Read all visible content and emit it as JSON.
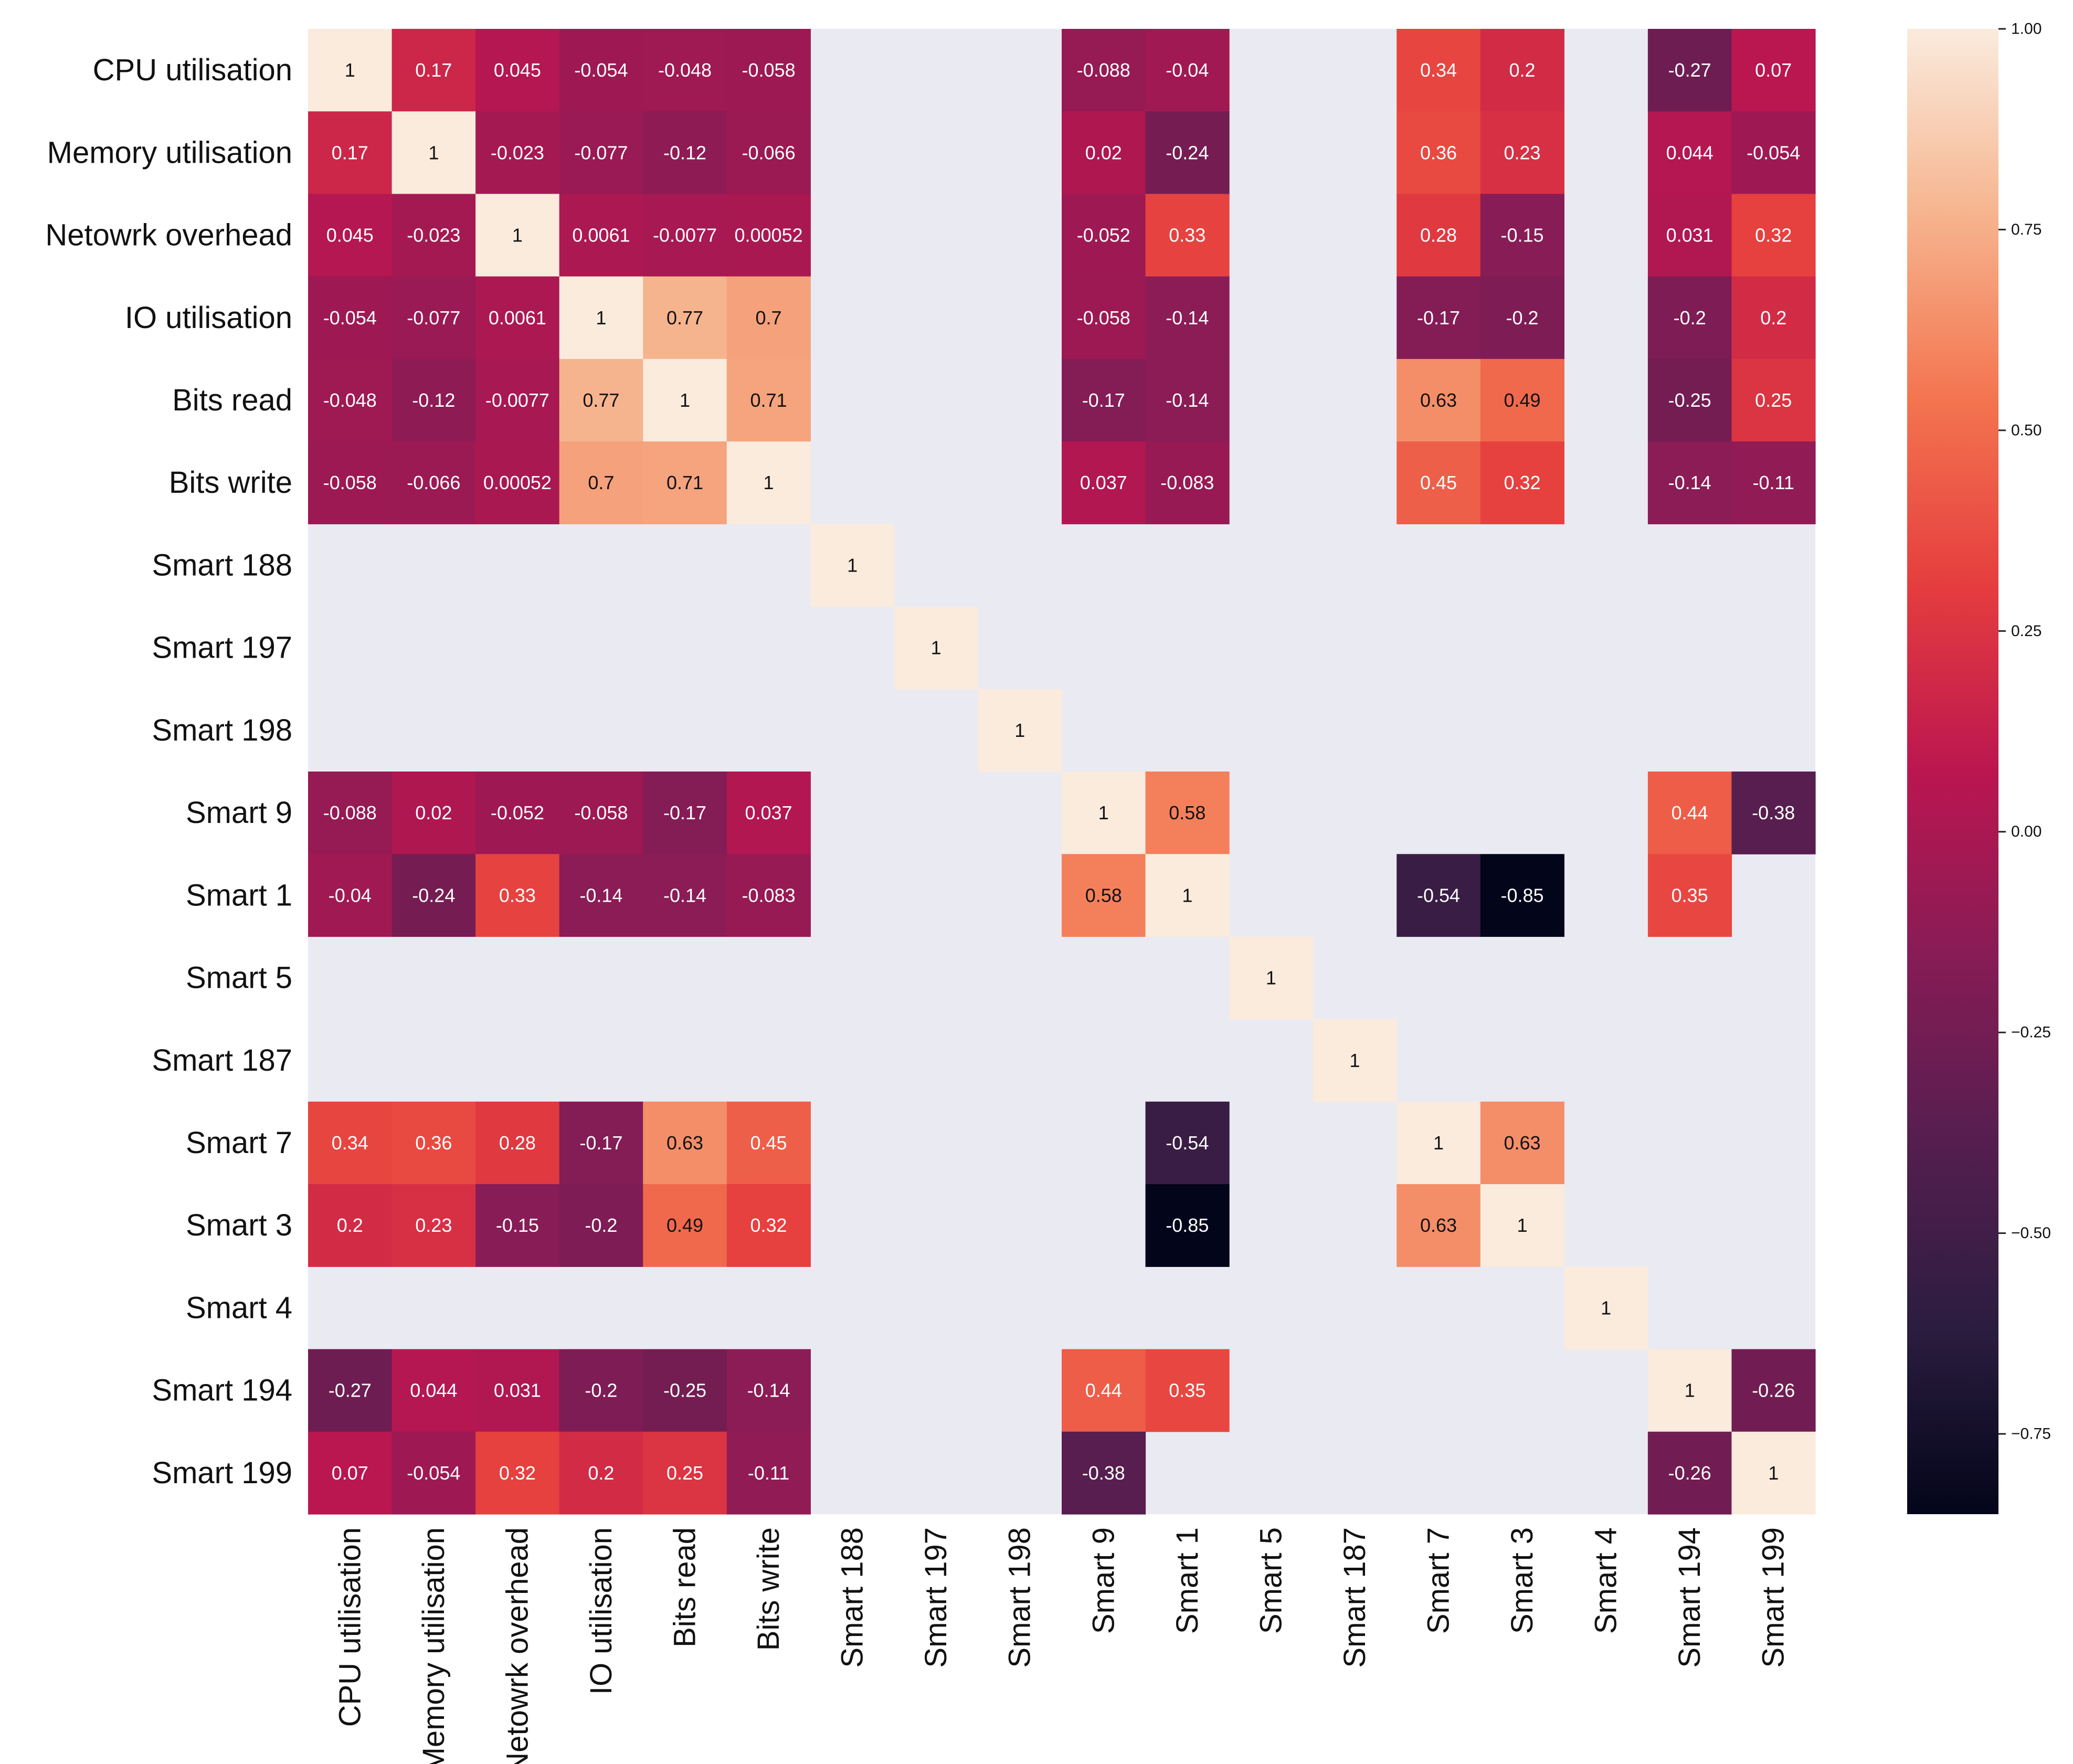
{
  "chart_data": {
    "type": "heatmap",
    "title": "",
    "xlabel": "",
    "ylabel": "",
    "labels": [
      "CPU utilisation",
      "Memory utilisation",
      "Netowrk overhead",
      "IO utilisation",
      "Bits read",
      "Bits write",
      "Smart 188",
      "Smart 197",
      "Smart 198",
      "Smart 9",
      "Smart 1",
      "Smart 5",
      "Smart 187",
      "Smart 7",
      "Smart 3",
      "Smart 4",
      "Smart 194",
      "Smart 199"
    ],
    "matrix": [
      [
        1,
        0.17,
        0.045,
        -0.054,
        -0.048,
        -0.058,
        null,
        null,
        null,
        -0.088,
        -0.04,
        null,
        null,
        0.34,
        0.2,
        null,
        -0.27,
        0.07
      ],
      [
        0.17,
        1,
        -0.023,
        -0.077,
        -0.12,
        -0.066,
        null,
        null,
        null,
        0.02,
        -0.24,
        null,
        null,
        0.36,
        0.23,
        null,
        0.044,
        -0.054
      ],
      [
        0.045,
        -0.023,
        1,
        0.0061,
        -0.0077,
        0.00052,
        null,
        null,
        null,
        -0.052,
        0.33,
        null,
        null,
        0.28,
        -0.15,
        null,
        0.031,
        0.32
      ],
      [
        -0.054,
        -0.077,
        0.0061,
        1,
        0.77,
        0.7,
        null,
        null,
        null,
        -0.058,
        -0.14,
        null,
        null,
        -0.17,
        -0.2,
        null,
        -0.2,
        0.2
      ],
      [
        -0.048,
        -0.12,
        -0.0077,
        0.77,
        1,
        0.71,
        null,
        null,
        null,
        -0.17,
        -0.14,
        null,
        null,
        0.63,
        0.49,
        null,
        -0.25,
        0.25
      ],
      [
        -0.058,
        -0.066,
        0.00052,
        0.7,
        0.71,
        1,
        null,
        null,
        null,
        0.037,
        -0.083,
        null,
        null,
        0.45,
        0.32,
        null,
        -0.14,
        -0.11
      ],
      [
        null,
        null,
        null,
        null,
        null,
        null,
        1,
        null,
        null,
        null,
        null,
        null,
        null,
        null,
        null,
        null,
        null,
        null
      ],
      [
        null,
        null,
        null,
        null,
        null,
        null,
        null,
        1,
        null,
        null,
        null,
        null,
        null,
        null,
        null,
        null,
        null,
        null
      ],
      [
        null,
        null,
        null,
        null,
        null,
        null,
        null,
        null,
        1,
        null,
        null,
        null,
        null,
        null,
        null,
        null,
        null,
        null
      ],
      [
        -0.088,
        0.02,
        -0.052,
        -0.058,
        -0.17,
        0.037,
        null,
        null,
        null,
        1,
        0.58,
        null,
        null,
        null,
        null,
        null,
        0.44,
        -0.38
      ],
      [
        -0.04,
        -0.24,
        0.33,
        -0.14,
        -0.14,
        -0.083,
        null,
        null,
        null,
        0.58,
        1,
        null,
        null,
        -0.54,
        -0.85,
        null,
        0.35,
        null
      ],
      [
        null,
        null,
        null,
        null,
        null,
        null,
        null,
        null,
        null,
        null,
        null,
        1,
        null,
        null,
        null,
        null,
        null,
        null
      ],
      [
        null,
        null,
        null,
        null,
        null,
        null,
        null,
        null,
        null,
        null,
        null,
        null,
        1,
        null,
        null,
        null,
        null,
        null
      ],
      [
        0.34,
        0.36,
        0.28,
        -0.17,
        0.63,
        0.45,
        null,
        null,
        null,
        null,
        -0.54,
        null,
        null,
        1,
        0.63,
        null,
        null,
        null
      ],
      [
        0.2,
        0.23,
        -0.15,
        -0.2,
        0.49,
        0.32,
        null,
        null,
        null,
        null,
        -0.85,
        null,
        null,
        0.63,
        1,
        null,
        null,
        null
      ],
      [
        null,
        null,
        null,
        null,
        null,
        null,
        null,
        null,
        null,
        null,
        null,
        null,
        null,
        null,
        null,
        1,
        null,
        null
      ],
      [
        -0.27,
        0.044,
        0.031,
        -0.2,
        -0.25,
        -0.14,
        null,
        null,
        null,
        0.44,
        0.35,
        null,
        null,
        null,
        null,
        null,
        1,
        -0.26
      ],
      [
        0.07,
        -0.054,
        0.32,
        0.2,
        0.25,
        -0.11,
        null,
        null,
        null,
        -0.38,
        null,
        null,
        null,
        null,
        null,
        null,
        -0.26,
        1
      ]
    ],
    "display_text": [
      [
        "1",
        "0.17",
        "0.045",
        "-0.054",
        "-0.048",
        "-0.058",
        "",
        "",
        "",
        "-0.088",
        "-0.04",
        "",
        "",
        "0.34",
        "0.2",
        "",
        "-0.27",
        "0.07"
      ],
      [
        "0.17",
        "1",
        "-0.023",
        "-0.077",
        "-0.12",
        "-0.066",
        "",
        "",
        "",
        "0.02",
        "-0.24",
        "",
        "",
        "0.36",
        "0.23",
        "",
        "0.044",
        "-0.054"
      ],
      [
        "0.045",
        "-0.023",
        "1",
        "0.0061",
        "-0.0077",
        "0.00052",
        "",
        "",
        "",
        "-0.052",
        "0.33",
        "",
        "",
        "0.28",
        "-0.15",
        "",
        "0.031",
        "0.32"
      ],
      [
        "-0.054",
        "-0.077",
        "0.0061",
        "1",
        "0.77",
        "0.7",
        "",
        "",
        "",
        "-0.058",
        "-0.14",
        "",
        "",
        "-0.17",
        "-0.2",
        "",
        "-0.2",
        "0.2"
      ],
      [
        "-0.048",
        "-0.12",
        "-0.0077",
        "0.77",
        "1",
        "0.71",
        "",
        "",
        "",
        "-0.17",
        "-0.14",
        "",
        "",
        "0.63",
        "0.49",
        "",
        "-0.25",
        "0.25"
      ],
      [
        "-0.058",
        "-0.066",
        "0.00052",
        "0.7",
        "0.71",
        "1",
        "",
        "",
        "",
        "0.037",
        "-0.083",
        "",
        "",
        "0.45",
        "0.32",
        "",
        "-0.14",
        "-0.11"
      ],
      [
        "",
        "",
        "",
        "",
        "",
        "",
        "1",
        "",
        "",
        "",
        "",
        "",
        "",
        "",
        "",
        "",
        "",
        ""
      ],
      [
        "",
        "",
        "",
        "",
        "",
        "",
        "",
        "1",
        "",
        "",
        "",
        "",
        "",
        "",
        "",
        "",
        "",
        ""
      ],
      [
        "",
        "",
        "",
        "",
        "",
        "",
        "",
        "",
        "1",
        "",
        "",
        "",
        "",
        "",
        "",
        "",
        "",
        ""
      ],
      [
        "-0.088",
        "0.02",
        "-0.052",
        "-0.058",
        "-0.17",
        "0.037",
        "",
        "",
        "",
        "1",
        "0.58",
        "",
        "",
        "",
        "",
        "",
        "0.44",
        "-0.38"
      ],
      [
        "-0.04",
        "-0.24",
        "0.33",
        "-0.14",
        "-0.14",
        "-0.083",
        "",
        "",
        "",
        "0.58",
        "1",
        "",
        "",
        "-0.54",
        "-0.85",
        "",
        "0.35",
        ""
      ],
      [
        "",
        "",
        "",
        "",
        "",
        "",
        "",
        "",
        "",
        "",
        "",
        "1",
        "",
        "",
        "",
        "",
        "",
        ""
      ],
      [
        "",
        "",
        "",
        "",
        "",
        "",
        "",
        "",
        "",
        "",
        "",
        "",
        "1",
        "",
        "",
        "",
        "",
        ""
      ],
      [
        "0.34",
        "0.36",
        "0.28",
        "-0.17",
        "0.63",
        "0.45",
        "",
        "",
        "",
        "",
        "-0.54",
        "",
        "",
        "1",
        "0.63",
        "",
        "",
        ""
      ],
      [
        "0.2",
        "0.23",
        "-0.15",
        "-0.2",
        "0.49",
        "0.32",
        "",
        "",
        "",
        "",
        "-0.85",
        "",
        "",
        "0.63",
        "1",
        "",
        "",
        ""
      ],
      [
        "",
        "",
        "",
        "",
        "",
        "",
        "",
        "",
        "",
        "",
        "",
        "",
        "",
        "",
        "",
        "1",
        "",
        ""
      ],
      [
        "-0.27",
        "0.044",
        "0.031",
        "-0.2",
        "-0.25",
        "-0.14",
        "",
        "",
        "",
        "0.44",
        "0.35",
        "",
        "",
        "",
        "",
        "",
        "1",
        "-0.26"
      ],
      [
        "0.07",
        "-0.054",
        "0.32",
        "0.2",
        "0.25",
        "-0.11",
        "",
        "",
        "",
        "-0.38",
        "",
        "",
        "",
        "",
        "",
        "",
        "-0.26",
        "1"
      ]
    ],
    "missing_color": "#eaeaf2",
    "colorbar": {
      "vmin": -0.85,
      "vmax": 1.0,
      "ticks": [
        1.0,
        0.75,
        0.5,
        0.25,
        0.0,
        -0.25,
        -0.5,
        -0.75
      ],
      "tick_labels": [
        "1.00",
        "0.75",
        "0.50",
        "0.25",
        "0.00",
        "−0.25",
        "−0.50",
        "−0.75"
      ],
      "colormap": "rocket",
      "colormap_stops": [
        {
          "t": 0.0,
          "color": "#03051a"
        },
        {
          "t": 0.125,
          "color": "#2b1d3f"
        },
        {
          "t": 0.25,
          "color": "#551e4f"
        },
        {
          "t": 0.375,
          "color": "#871c56"
        },
        {
          "t": 0.5,
          "color": "#bb1650"
        },
        {
          "t": 0.625,
          "color": "#e53d3e"
        },
        {
          "t": 0.75,
          "color": "#f3744f"
        },
        {
          "t": 0.875,
          "color": "#f6b48e"
        },
        {
          "t": 1.0,
          "color": "#faebdd"
        }
      ]
    }
  }
}
